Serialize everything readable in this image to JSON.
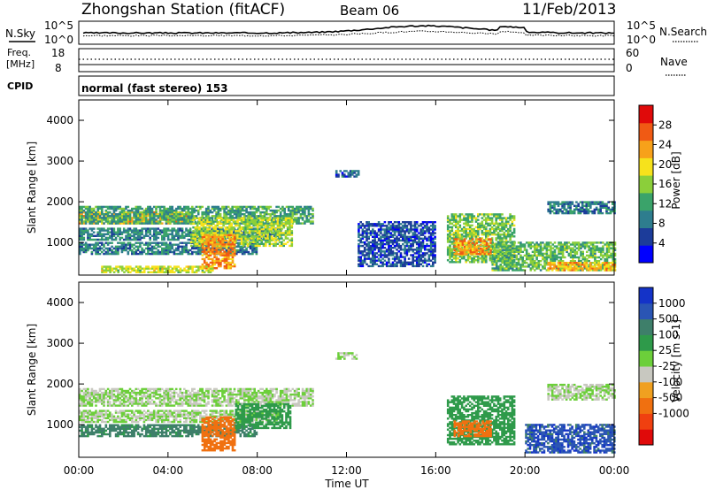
{
  "header": {
    "title": "Zhongshan Station (fitACF)",
    "beam": "Beam 06",
    "date": "11/Feb/2013"
  },
  "strip_nsky": {
    "left_label": "N.Sky",
    "right_label": "N.Search",
    "left_ticks": [
      "10^5",
      "10^0"
    ],
    "right_ticks": [
      "10^5",
      "10^0"
    ]
  },
  "strip_freq": {
    "left_label_line1": "Freq.",
    "left_label_line2": "[MHz]",
    "right_label": "Nave",
    "left_ticks": [
      "18",
      "8"
    ],
    "right_ticks": [
      "60",
      "0"
    ]
  },
  "cpid": {
    "label": "CPID",
    "value": "normal (fast stereo) 153"
  },
  "chart_data": [
    {
      "type": "heatmap",
      "panel": "power",
      "ylabel": "Slant Range [km]",
      "xlim": [
        0,
        24
      ],
      "ylim": [
        200,
        4500
      ],
      "yticks": [
        1000,
        2000,
        3000,
        4000
      ],
      "colorbar": {
        "label": "Power [dB]",
        "range": [
          0,
          32
        ],
        "tick_values": [
          4,
          8,
          12,
          16,
          20,
          24,
          28
        ],
        "tick_labels": [
          "4",
          "8",
          "12",
          "16",
          "20",
          "24",
          "28"
        ],
        "colors": [
          "#0000ff",
          "#1c3c9a",
          "#2e7d8e",
          "#3aa36a",
          "#8bcf3a",
          "#f6e21c",
          "#f7a11a",
          "#f05a14",
          "#e00a0a"
        ]
      },
      "bands": [
        {
          "t0": 0,
          "t1": 5,
          "r0": 1450,
          "r1": 1750,
          "v": 22
        },
        {
          "t0": 0,
          "t1": 10.5,
          "r0": 1450,
          "r1": 1900,
          "v": 12
        },
        {
          "t0": 0,
          "t1": 9,
          "r0": 1050,
          "r1": 1350,
          "v": 10
        },
        {
          "t0": 0,
          "t1": 8,
          "r0": 700,
          "r1": 1000,
          "v": 9
        },
        {
          "t0": 5,
          "t1": 9.5,
          "r0": 900,
          "r1": 1600,
          "v": 17
        },
        {
          "t0": 5.5,
          "t1": 7,
          "r0": 350,
          "r1": 1200,
          "v": 24
        },
        {
          "t0": 1,
          "t1": 6,
          "r0": 250,
          "r1": 400,
          "v": 18
        },
        {
          "t0": 11.5,
          "t1": 12.5,
          "r0": 2600,
          "r1": 2750,
          "v": 7
        },
        {
          "t0": 16.5,
          "t1": 19.5,
          "r0": 500,
          "r1": 1700,
          "v": 15
        },
        {
          "t0": 16.8,
          "t1": 18.5,
          "r0": 700,
          "r1": 1100,
          "v": 24
        },
        {
          "t0": 18.5,
          "t1": 24,
          "r0": 300,
          "r1": 1000,
          "v": 14
        },
        {
          "t0": 21,
          "t1": 24,
          "r0": 300,
          "r1": 500,
          "v": 22
        },
        {
          "t0": 21,
          "t1": 24,
          "r0": 1700,
          "r1": 2000,
          "v": 9
        },
        {
          "t0": 12.5,
          "t1": 16,
          "r0": 400,
          "r1": 1500,
          "v": 6
        }
      ]
    },
    {
      "type": "heatmap",
      "panel": "velocity",
      "ylabel": "Slant Range [km]",
      "xlabel": "Time UT",
      "xlim": [
        0,
        24
      ],
      "ylim": [
        200,
        4500
      ],
      "yticks": [
        1000,
        2000,
        3000,
        4000
      ],
      "xticks": [
        "00:00",
        "04:00",
        "08:00",
        "12:00",
        "16:00",
        "20:00",
        "00:00"
      ],
      "colorbar": {
        "label": "Velocity [m s-1]",
        "tick_labels": [
          "1000",
          "500",
          "100",
          "25",
          "-25",
          "-100",
          "-500",
          "-1000"
        ],
        "colors": [
          "#1433c8",
          "#2a55b4",
          "#3e7f6a",
          "#2e9a4a",
          "#6ccf3a",
          "#c8c8c0",
          "#f0a020",
          "#f07010",
          "#f04010",
          "#e00a0a"
        ]
      },
      "bands": [
        {
          "t0": 0,
          "t1": 10.5,
          "r0": 1450,
          "r1": 1900,
          "v": 0
        },
        {
          "t0": 0,
          "t1": 9,
          "r0": 1050,
          "r1": 1350,
          "v": 0
        },
        {
          "t0": 0,
          "t1": 8,
          "r0": 700,
          "r1": 1000,
          "v": 150
        },
        {
          "t0": 5.5,
          "t1": 7,
          "r0": 350,
          "r1": 1200,
          "v": -200
        },
        {
          "t0": 7,
          "t1": 9.5,
          "r0": 900,
          "r1": 1500,
          "v": 60
        },
        {
          "t0": 11.5,
          "t1": 12.5,
          "r0": 2600,
          "r1": 2750,
          "v": 0
        },
        {
          "t0": 16.5,
          "t1": 19.5,
          "r0": 500,
          "r1": 1700,
          "v": 50
        },
        {
          "t0": 16.8,
          "t1": 18.5,
          "r0": 700,
          "r1": 1100,
          "v": -300
        },
        {
          "t0": 20,
          "t1": 24,
          "r0": 300,
          "r1": 1000,
          "v": 800
        },
        {
          "t0": 21,
          "t1": 24,
          "r0": 1600,
          "r1": 2000,
          "v": 0
        }
      ]
    }
  ]
}
